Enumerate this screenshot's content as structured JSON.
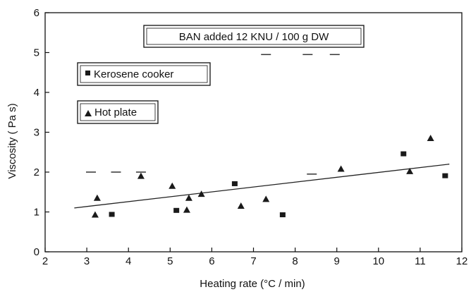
{
  "chart_data": {
    "type": "scatter",
    "title": "BAN added   12 KNU / 100 g DW",
    "xlabel": "Heating rate (°C / min)",
    "ylabel": "Viscosity ( Pa  s)",
    "xlim": [
      2,
      12
    ],
    "ylim": [
      0,
      6
    ],
    "xticks": [
      2,
      3,
      4,
      5,
      6,
      7,
      8,
      9,
      10,
      11,
      12
    ],
    "yticks": [
      0,
      1,
      2,
      3,
      4,
      5,
      6
    ],
    "grid": false,
    "legend_placement": "top-left",
    "series": [
      {
        "name": "Kerosene cooker",
        "marker": "square",
        "points": [
          {
            "x": 3.6,
            "y": 0.93
          },
          {
            "x": 5.15,
            "y": 1.03
          },
          {
            "x": 6.55,
            "y": 1.7
          },
          {
            "x": 7.7,
            "y": 0.92
          },
          {
            "x": 10.6,
            "y": 2.45
          },
          {
            "x": 11.6,
            "y": 1.9
          }
        ]
      },
      {
        "name": "Hot plate",
        "marker": "triangle",
        "points": [
          {
            "x": 3.2,
            "y": 0.93
          },
          {
            "x": 3.25,
            "y": 1.35
          },
          {
            "x": 4.3,
            "y": 1.9
          },
          {
            "x": 5.05,
            "y": 1.65
          },
          {
            "x": 5.4,
            "y": 1.05
          },
          {
            "x": 5.45,
            "y": 1.35
          },
          {
            "x": 5.75,
            "y": 1.45
          },
          {
            "x": 6.7,
            "y": 1.15
          },
          {
            "x": 7.3,
            "y": 1.32
          },
          {
            "x": 9.1,
            "y": 2.08
          },
          {
            "x": 10.75,
            "y": 2.02
          },
          {
            "x": 11.25,
            "y": 2.85
          }
        ]
      }
    ],
    "trendline": {
      "x1": 2.7,
      "y1": 1.1,
      "x2": 11.7,
      "y2": 2.2
    },
    "artifact_dashes": [
      {
        "x": 3.1,
        "y": 2.0
      },
      {
        "x": 3.7,
        "y": 2.0
      },
      {
        "x": 4.3,
        "y": 2.0
      },
      {
        "x": 8.4,
        "y": 1.95
      },
      {
        "x": 7.3,
        "y": 4.95
      },
      {
        "x": 8.3,
        "y": 4.95
      },
      {
        "x": 8.95,
        "y": 4.95
      }
    ],
    "colors": {
      "marker": "#1a1a1a",
      "axis": "#111111",
      "line": "#222222"
    }
  }
}
